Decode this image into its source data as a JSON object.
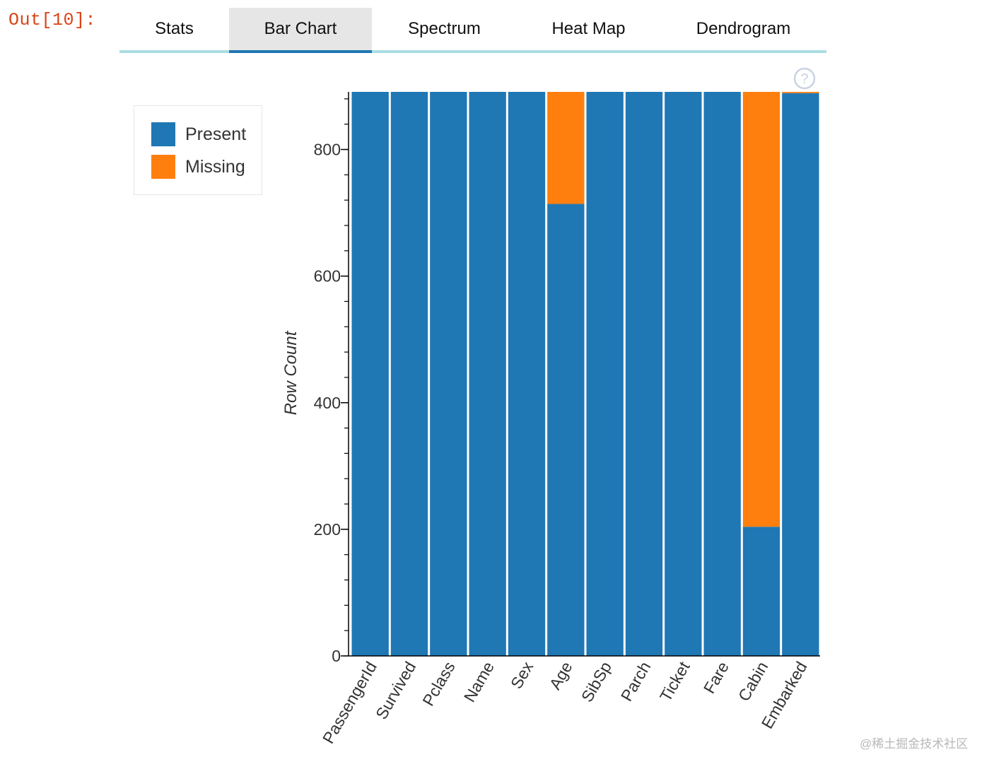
{
  "cell": {
    "prompt": "Out[10]:"
  },
  "tabs": [
    {
      "label": "Stats",
      "active": false
    },
    {
      "label": "Bar Chart",
      "active": true
    },
    {
      "label": "Spectrum",
      "active": false
    },
    {
      "label": "Heat Map",
      "active": false
    },
    {
      "label": "Dendrogram",
      "active": false
    }
  ],
  "help": {
    "icon": "help-circle-icon",
    "symbol": "?"
  },
  "colors": {
    "present": "#1f77b4",
    "missing": "#ff7f0e",
    "tab_underline": "#a9dde3",
    "tab_active_bar": "#1f77b4"
  },
  "legend": {
    "items": [
      {
        "label": "Present",
        "color": "#1f77b4"
      },
      {
        "label": "Missing",
        "color": "#ff7f0e"
      }
    ]
  },
  "chart_data": {
    "type": "bar",
    "stacked": true,
    "title": "",
    "xlabel": "",
    "ylabel": "Row Count",
    "ylim": [
      0,
      891
    ],
    "yticks": [
      0,
      200,
      400,
      600,
      800
    ],
    "ytick_labels": [
      "0",
      "200",
      "400",
      "600",
      "800"
    ],
    "minor_tick_step": 40,
    "categories": [
      "PassengerId",
      "Survived",
      "Pclass",
      "Name",
      "Sex",
      "Age",
      "SibSp",
      "Parch",
      "Ticket",
      "Fare",
      "Cabin",
      "Embarked"
    ],
    "series": [
      {
        "name": "Present",
        "values": [
          891,
          891,
          891,
          891,
          891,
          714,
          891,
          891,
          891,
          891,
          204,
          889
        ]
      },
      {
        "name": "Missing",
        "values": [
          0,
          0,
          0,
          0,
          0,
          177,
          0,
          0,
          0,
          0,
          687,
          2
        ]
      }
    ],
    "legend_position": "left",
    "grid": false
  },
  "watermark": "@稀土掘金技术社区"
}
